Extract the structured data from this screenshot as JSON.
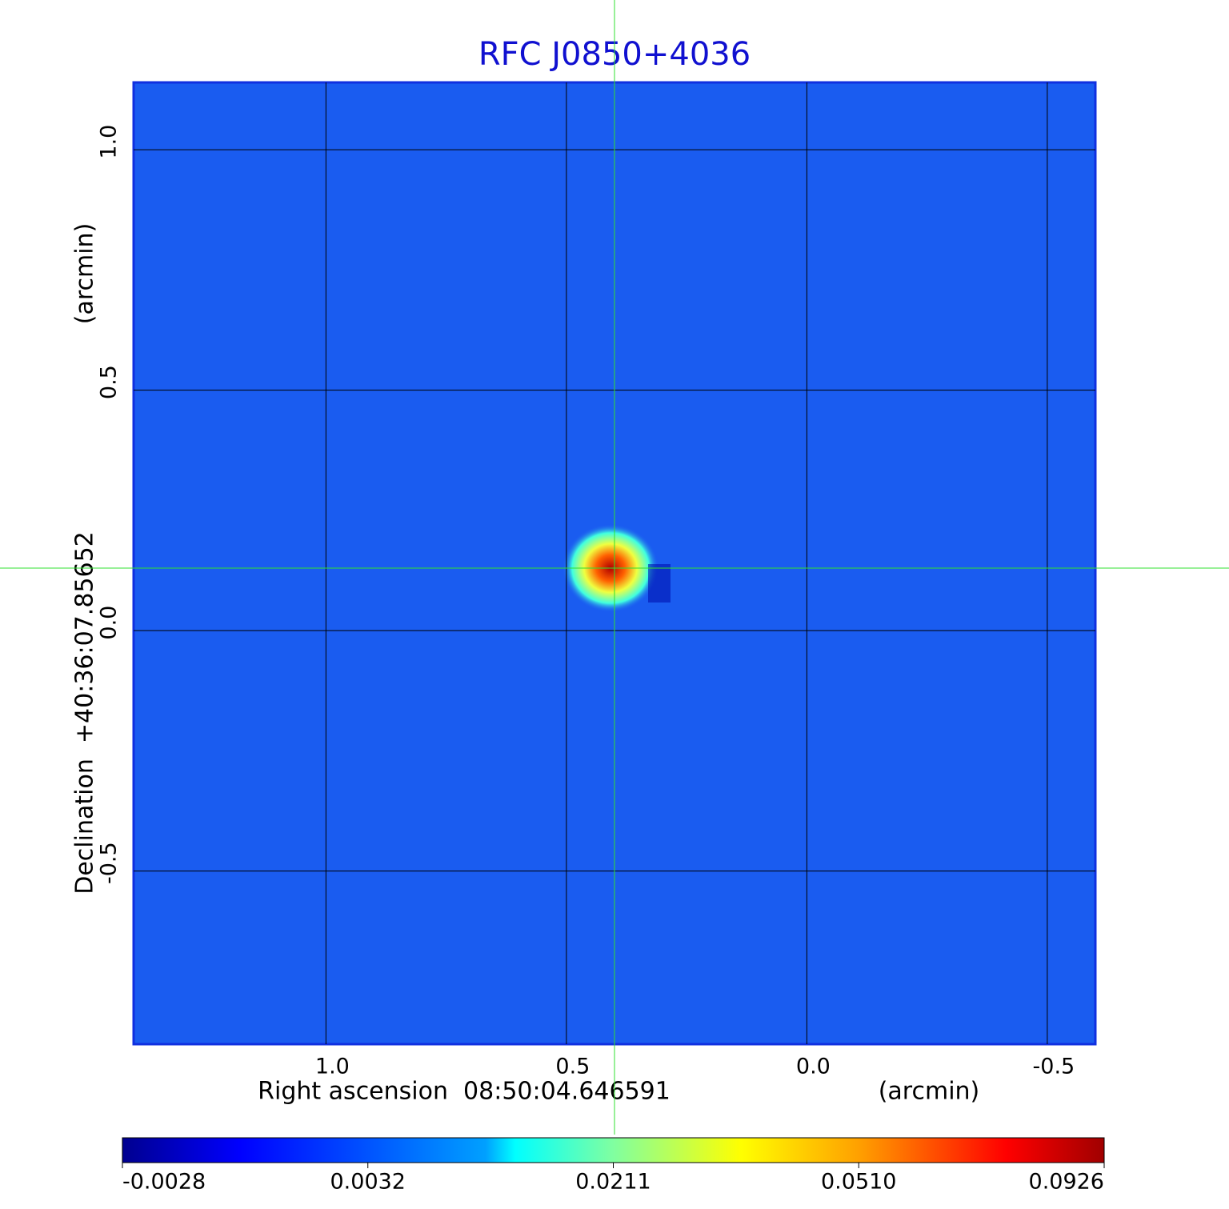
{
  "chart_data": {
    "type": "image",
    "title": "RFC J0850+4036",
    "xlabel": "Right ascension  08:50:04.646591",
    "xunit": "(arcmin)",
    "ylabel": "Declination  +40:36:07.85652",
    "yunit": "(arcmin)",
    "xlim": [
      1.4,
      -0.6
    ],
    "ylim": [
      -0.86,
      1.14
    ],
    "xticks": [
      {
        "value": 1,
        "label": "1.0"
      },
      0.5,
      {
        "value": 0,
        "label": "0.0"
      },
      -0.5
    ],
    "yticks": [
      {
        "value": 1,
        "label": "1.0"
      },
      0.5,
      {
        "value": 0,
        "label": "0.0"
      },
      -0.5
    ],
    "grid": true,
    "crosshair": {
      "x": 0.4,
      "y": 0.13
    },
    "colorbar": {
      "colormap": "jet",
      "ticks": [
        -0.0028,
        0.0032,
        0.0211,
        {
          "value": 0.051,
          "label": "0.0510"
        },
        0.0926
      ]
    }
  }
}
